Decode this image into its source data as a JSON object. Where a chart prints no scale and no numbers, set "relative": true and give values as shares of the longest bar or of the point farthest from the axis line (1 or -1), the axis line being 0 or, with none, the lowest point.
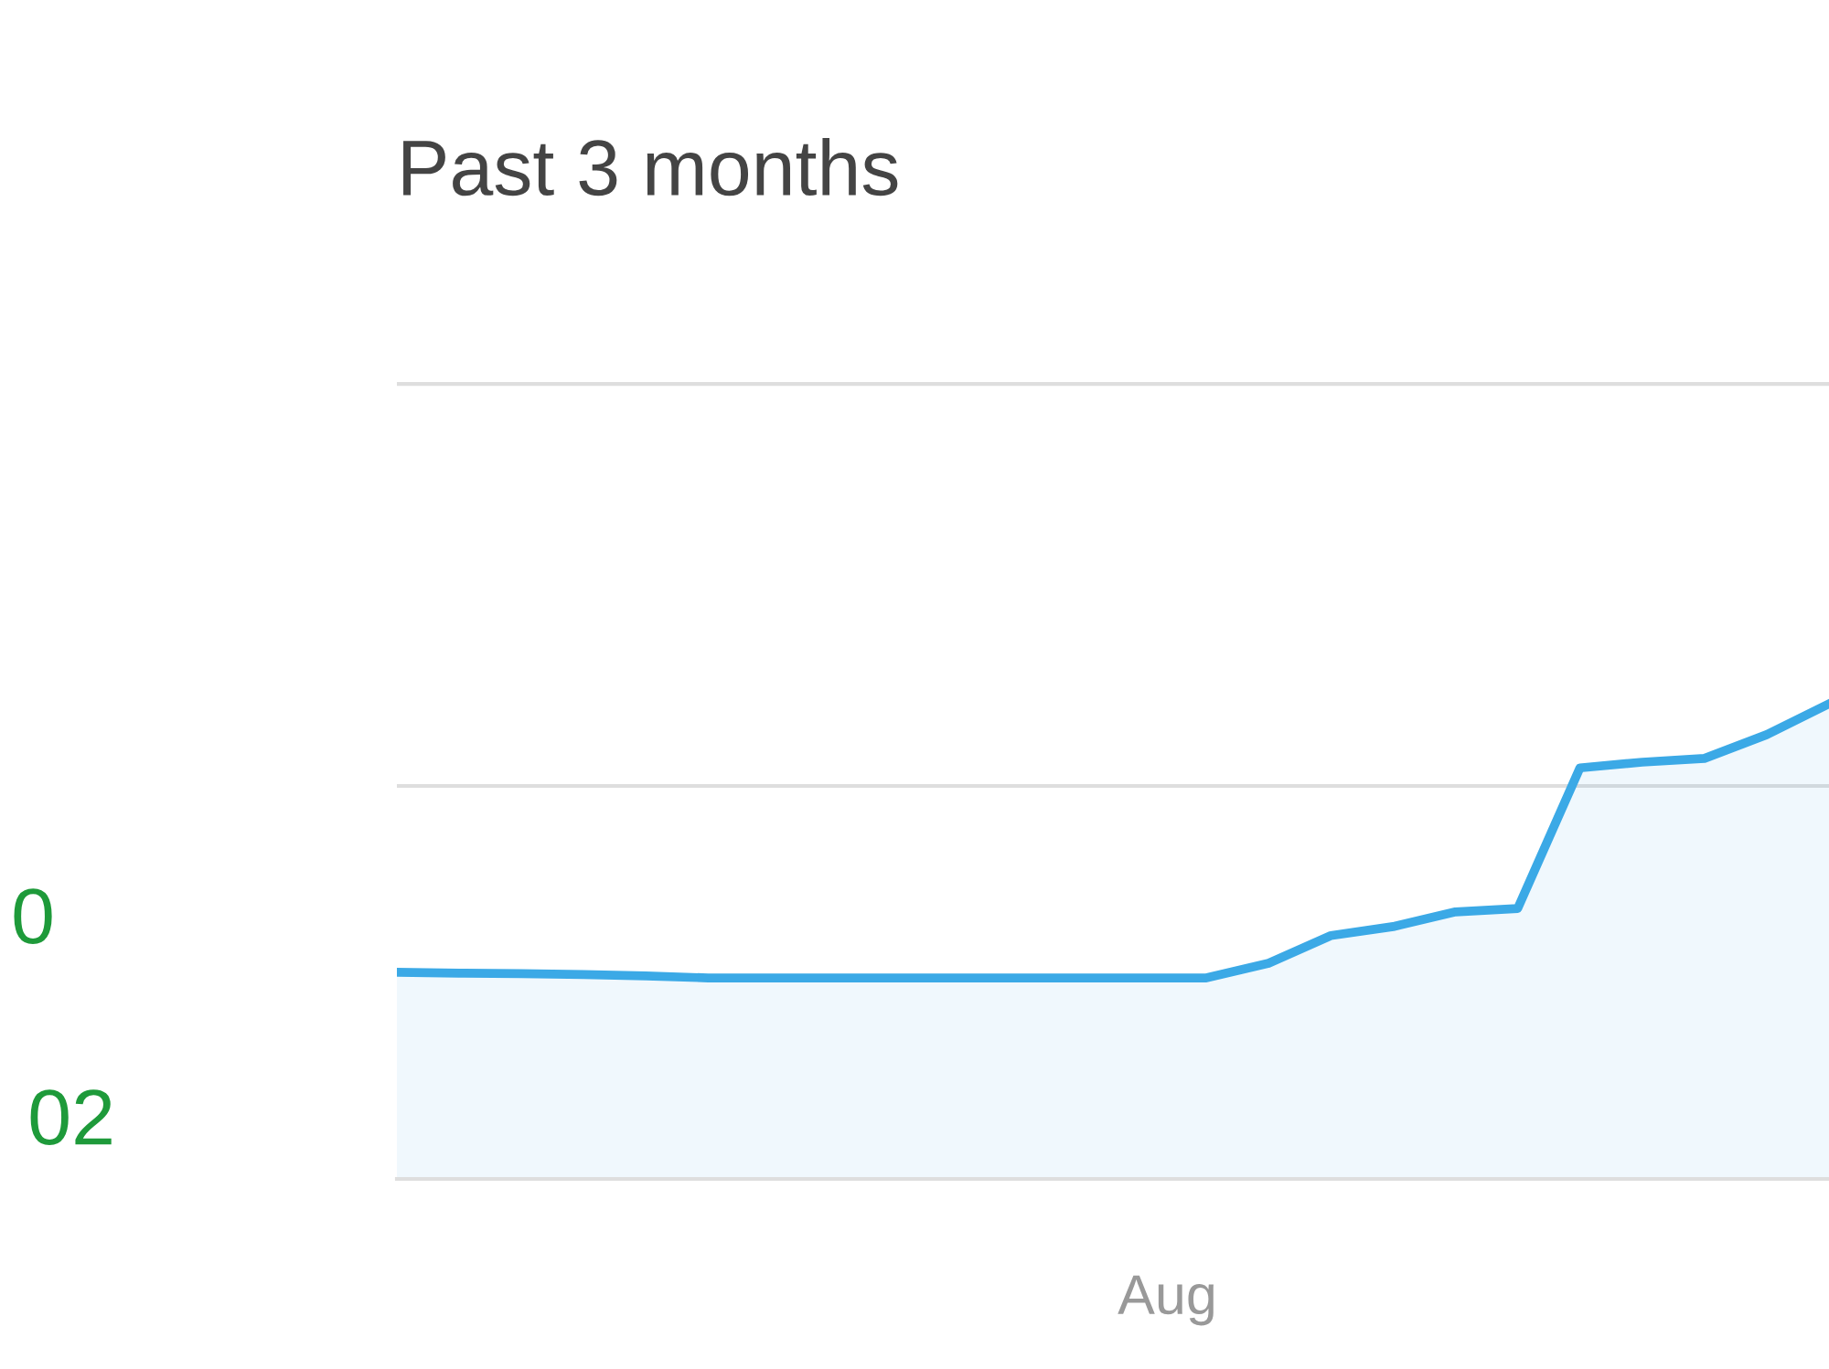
{
  "chart_data": {
    "type": "area",
    "title": "Past 3 months",
    "relative": true,
    "categories": [
      null,
      null,
      null,
      null,
      null,
      null,
      null,
      null,
      null,
      null,
      null,
      null,
      null,
      null,
      null,
      null,
      null,
      null,
      null,
      null,
      null,
      null,
      null,
      null
    ],
    "series": [
      {
        "color": "#3ba9e6",
        "values": [
          0.435,
          0.433,
          0.432,
          0.43,
          0.427,
          0.423,
          0.423,
          0.423,
          0.423,
          0.423,
          0.423,
          0.423,
          0.423,
          0.423,
          0.454,
          0.512,
          0.531,
          0.562,
          0.569,
          0.865,
          0.877,
          0.885,
          0.935,
          1.0
        ]
      }
    ],
    "ref_lines": [
      {
        "axis": "y",
        "value": 0.827,
        "color": "#dedede"
      },
      {
        "axis": "y",
        "value": 1.673,
        "color": "#dedede"
      }
    ],
    "annotations": [
      "Aug",
      "0",
      "02"
    ]
  }
}
